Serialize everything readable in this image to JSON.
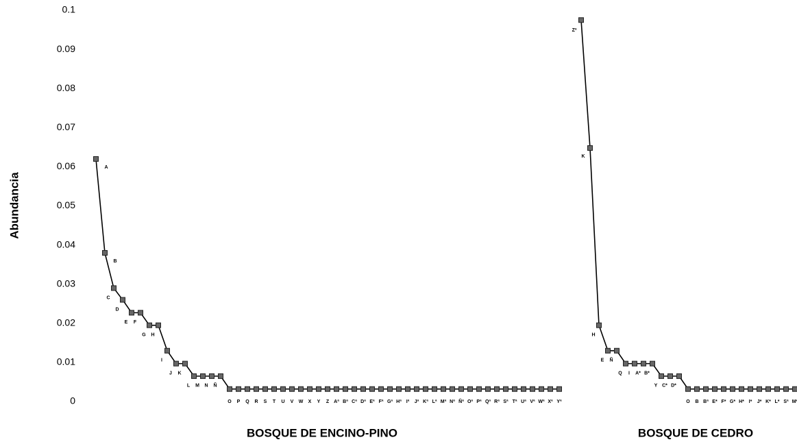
{
  "chart_data": {
    "type": "line",
    "y_label": "Abundancia",
    "ylim": [
      0,
      0.1
    ],
    "yticks": [
      0,
      0.01,
      0.02,
      0.03,
      0.04,
      0.05,
      0.06,
      0.07,
      0.08,
      0.09,
      0.1
    ],
    "color": "#000000",
    "marker_color": "#666666",
    "series": [
      {
        "name": "BOSQUE DE ENCINO-PINO",
        "categories": [
          "A",
          "B",
          "C",
          "D",
          "E",
          "F",
          "G",
          "H",
          "I",
          "J",
          "K",
          "L",
          "M",
          "N",
          "Ñ",
          "O",
          "P",
          "Q",
          "R",
          "S",
          "T",
          "U",
          "V",
          "W",
          "X",
          "Y",
          "Z",
          "Aª",
          "Bª",
          "Cª",
          "Dª",
          "Eª",
          "Fª",
          "Gª",
          "Hª",
          "Iª",
          "Jª",
          "Kª",
          "Lª",
          "Mª",
          "Nª",
          "Ñª",
          "Oª",
          "Pª",
          "Qª",
          "Rª",
          "Sª",
          "Tª",
          "Uª",
          "Vª",
          "Wª",
          "Xª",
          "Yª"
        ],
        "values": [
          0.062,
          0.038,
          0.029,
          0.026,
          0.0227,
          0.0227,
          0.0195,
          0.0195,
          0.013,
          0.0097,
          0.0097,
          0.0065,
          0.0065,
          0.0065,
          0.0065,
          0.0032,
          0.0032,
          0.0032,
          0.0032,
          0.0032,
          0.0032,
          0.0032,
          0.0032,
          0.0032,
          0.0032,
          0.0032,
          0.0032,
          0.0032,
          0.0032,
          0.0032,
          0.0032,
          0.0032,
          0.0032,
          0.0032,
          0.0032,
          0.0032,
          0.0032,
          0.0032,
          0.0032,
          0.0032,
          0.0032,
          0.0032,
          0.0032,
          0.0032,
          0.0032,
          0.0032,
          0.0032,
          0.0032,
          0.0032,
          0.0032,
          0.0032,
          0.0032,
          0.0032
        ]
      },
      {
        "name": "BOSQUE DE CEDRO",
        "categories": [
          "Zª",
          "K",
          "H",
          "E",
          "Ñ",
          "Q",
          "I",
          "A*",
          "B*",
          "Y",
          "C*",
          "D*",
          "O",
          "B",
          "Bª",
          "E*",
          "F*",
          "G*",
          "H*",
          "I*",
          "J*",
          "K*",
          "L*",
          "Sª",
          "M*"
        ],
        "values": [
          0.0975,
          0.0648,
          0.0195,
          0.013,
          0.013,
          0.0097,
          0.0097,
          0.0097,
          0.0097,
          0.0065,
          0.0065,
          0.0065,
          0.0032,
          0.0032,
          0.0032,
          0.0032,
          0.0032,
          0.0032,
          0.0032,
          0.0032,
          0.0032,
          0.0032,
          0.0032,
          0.0032,
          0.0032
        ]
      }
    ]
  }
}
